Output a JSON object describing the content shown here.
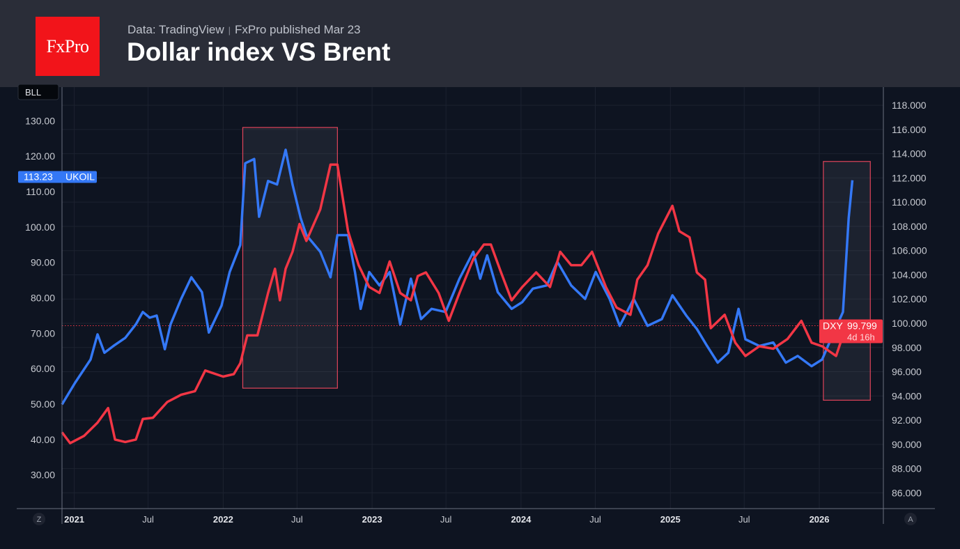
{
  "header": {
    "logo_text": "FxPro",
    "source": "Data: TradingView",
    "published": "FxPro published Mar 23",
    "title": "Dollar index VS Brent"
  },
  "colors": {
    "brent": "#3478f6",
    "dxy": "#f23645",
    "background": "#0e1421",
    "header_bg": "#2a2d38",
    "annotation": "#e0445a"
  },
  "icons": {
    "left_scale_button": "Z",
    "auto_scale_button": "A"
  },
  "chart_data": {
    "type": "line",
    "title": "Dollar index VS Brent",
    "xlim": [
      "2020-12-02",
      "2026-06-07"
    ],
    "x_ticks": [
      {
        "date": "2021-01-01",
        "label": "2021",
        "major": true
      },
      {
        "date": "2021-07-01",
        "label": "Jul",
        "major": false
      },
      {
        "date": "2022-01-01",
        "label": "2022",
        "major": true
      },
      {
        "date": "2022-07-01",
        "label": "Jul",
        "major": false
      },
      {
        "date": "2023-01-01",
        "label": "2023",
        "major": true
      },
      {
        "date": "2023-07-01",
        "label": "Jul",
        "major": false
      },
      {
        "date": "2024-01-01",
        "label": "2024",
        "major": true
      },
      {
        "date": "2024-07-01",
        "label": "Jul",
        "major": false
      },
      {
        "date": "2025-01-01",
        "label": "2025",
        "major": true
      },
      {
        "date": "2025-07-01",
        "label": "Jul",
        "major": false
      },
      {
        "date": "2026-01-01",
        "label": "2026",
        "major": true
      }
    ],
    "left_axis": {
      "label": "BLL",
      "ylim": [
        20.5,
        139.5
      ],
      "ticks": [
        "30.00",
        "40.00",
        "50.00",
        "60.00",
        "70.00",
        "80.00",
        "90.00",
        "100.00",
        "110.00",
        "120.00",
        "130.00"
      ]
    },
    "right_axis": {
      "ylim": [
        84.7,
        119.5
      ],
      "ticks": [
        "86.000",
        "88.000",
        "90.000",
        "92.000",
        "94.000",
        "96.000",
        "98.000",
        "100.000",
        "102.000",
        "104.000",
        "106.000",
        "108.000",
        "110.000",
        "112.000",
        "114.000",
        "116.000",
        "118.000"
      ]
    },
    "grid": true,
    "series": [
      {
        "name": "UKOIL",
        "axis": "left",
        "color": "#3478f6",
        "last_value": "113.23",
        "points": [
          [
            "2020-12-02",
            49.9
          ],
          [
            "2021-01-03",
            56.0
          ],
          [
            "2021-02-10",
            62.6
          ],
          [
            "2021-02-27",
            69.7
          ],
          [
            "2021-03-16",
            64.5
          ],
          [
            "2021-04-07",
            66.4
          ],
          [
            "2021-05-06",
            68.7
          ],
          [
            "2021-06-01",
            72.5
          ],
          [
            "2021-06-18",
            76.0
          ],
          [
            "2021-07-05",
            74.4
          ],
          [
            "2021-07-22",
            75.0
          ],
          [
            "2021-08-11",
            65.5
          ],
          [
            "2021-08-25",
            72.5
          ],
          [
            "2021-09-20",
            79.7
          ],
          [
            "2021-10-15",
            85.8
          ],
          [
            "2021-11-10",
            81.6
          ],
          [
            "2021-11-27",
            70.2
          ],
          [
            "2021-12-28",
            77.8
          ],
          [
            "2022-01-17",
            87.3
          ],
          [
            "2022-02-12",
            94.9
          ],
          [
            "2022-02-24",
            118.0
          ],
          [
            "2022-03-18",
            119.2
          ],
          [
            "2022-03-30",
            102.9
          ],
          [
            "2022-04-21",
            113.0
          ],
          [
            "2022-05-13",
            112.0
          ],
          [
            "2022-06-03",
            121.8
          ],
          [
            "2022-06-20",
            112.0
          ],
          [
            "2022-07-10",
            102.5
          ],
          [
            "2022-07-24",
            97.7
          ],
          [
            "2022-08-27",
            93.0
          ],
          [
            "2022-09-21",
            85.8
          ],
          [
            "2022-10-08",
            97.7
          ],
          [
            "2022-11-03",
            97.7
          ],
          [
            "2022-11-20",
            87.3
          ],
          [
            "2022-12-04",
            76.9
          ],
          [
            "2022-12-25",
            87.3
          ],
          [
            "2023-01-19",
            83.5
          ],
          [
            "2023-02-13",
            87.3
          ],
          [
            "2023-03-11",
            72.5
          ],
          [
            "2023-04-06",
            85.4
          ],
          [
            "2023-05-01",
            74.0
          ],
          [
            "2023-05-27",
            76.9
          ],
          [
            "2023-06-30",
            76.0
          ],
          [
            "2023-08-03",
            85.4
          ],
          [
            "2023-09-06",
            93.0
          ],
          [
            "2023-09-23",
            85.4
          ],
          [
            "2023-10-10",
            92.0
          ],
          [
            "2023-11-05",
            81.6
          ],
          [
            "2023-12-09",
            76.9
          ],
          [
            "2024-01-04",
            78.8
          ],
          [
            "2024-01-30",
            82.6
          ],
          [
            "2024-03-04",
            83.5
          ],
          [
            "2024-03-30",
            90.2
          ],
          [
            "2024-05-03",
            83.5
          ],
          [
            "2024-06-06",
            79.7
          ],
          [
            "2024-07-02",
            87.3
          ],
          [
            "2024-08-05",
            79.7
          ],
          [
            "2024-08-30",
            72.1
          ],
          [
            "2024-10-03",
            79.7
          ],
          [
            "2024-11-06",
            72.1
          ],
          [
            "2024-12-11",
            74.0
          ],
          [
            "2025-01-06",
            80.7
          ],
          [
            "2025-02-09",
            75.0
          ],
          [
            "2025-03-07",
            71.2
          ],
          [
            "2025-04-01",
            66.4
          ],
          [
            "2025-04-27",
            61.7
          ],
          [
            "2025-05-23",
            64.5
          ],
          [
            "2025-06-17",
            76.9
          ],
          [
            "2025-07-04",
            68.3
          ],
          [
            "2025-08-07",
            66.4
          ],
          [
            "2025-09-10",
            67.4
          ],
          [
            "2025-10-11",
            61.7
          ],
          [
            "2025-11-09",
            63.6
          ],
          [
            "2025-12-13",
            60.7
          ],
          [
            "2026-01-08",
            62.6
          ],
          [
            "2026-02-02",
            69.3
          ],
          [
            "2026-02-28",
            76.0
          ],
          [
            "2026-03-14",
            102.5
          ],
          [
            "2026-03-23",
            113.2
          ]
        ]
      },
      {
        "name": "DXY",
        "axis": "right",
        "color": "#f23645",
        "last_value": "99.799",
        "countdown": "4d 16h",
        "points": [
          [
            "2020-12-02",
            91.0
          ],
          [
            "2020-12-22",
            90.1
          ],
          [
            "2021-01-25",
            90.7
          ],
          [
            "2021-02-27",
            91.8
          ],
          [
            "2021-03-25",
            93.0
          ],
          [
            "2021-04-11",
            90.4
          ],
          [
            "2021-05-06",
            90.2
          ],
          [
            "2021-06-01",
            90.4
          ],
          [
            "2021-06-18",
            92.1
          ],
          [
            "2021-07-13",
            92.2
          ],
          [
            "2021-08-17",
            93.5
          ],
          [
            "2021-09-20",
            94.1
          ],
          [
            "2021-10-24",
            94.4
          ],
          [
            "2021-11-18",
            96.1
          ],
          [
            "2022-01-01",
            95.6
          ],
          [
            "2022-01-27",
            95.8
          ],
          [
            "2022-02-12",
            96.7
          ],
          [
            "2022-03-01",
            99.0
          ],
          [
            "2022-03-26",
            99.0
          ],
          [
            "2022-04-21",
            102.5
          ],
          [
            "2022-05-08",
            104.5
          ],
          [
            "2022-05-20",
            101.9
          ],
          [
            "2022-06-03",
            104.5
          ],
          [
            "2022-06-20",
            105.9
          ],
          [
            "2022-07-07",
            108.2
          ],
          [
            "2022-07-24",
            106.8
          ],
          [
            "2022-08-27",
            109.4
          ],
          [
            "2022-09-21",
            113.1
          ],
          [
            "2022-10-08",
            113.1
          ],
          [
            "2022-11-03",
            107.6
          ],
          [
            "2022-11-29",
            104.8
          ],
          [
            "2022-12-25",
            103.0
          ],
          [
            "2023-01-19",
            102.5
          ],
          [
            "2023-02-13",
            105.1
          ],
          [
            "2023-03-11",
            102.5
          ],
          [
            "2023-04-06",
            101.9
          ],
          [
            "2023-04-23",
            103.9
          ],
          [
            "2023-05-13",
            104.2
          ],
          [
            "2023-06-13",
            102.5
          ],
          [
            "2023-07-08",
            100.2
          ],
          [
            "2023-08-03",
            102.5
          ],
          [
            "2023-09-06",
            105.3
          ],
          [
            "2023-10-02",
            106.5
          ],
          [
            "2023-10-19",
            106.5
          ],
          [
            "2023-11-13",
            104.2
          ],
          [
            "2023-12-09",
            101.9
          ],
          [
            "2024-01-04",
            103.0
          ],
          [
            "2024-02-07",
            104.2
          ],
          [
            "2024-03-12",
            103.0
          ],
          [
            "2024-04-06",
            105.9
          ],
          [
            "2024-05-03",
            104.8
          ],
          [
            "2024-05-28",
            104.8
          ],
          [
            "2024-06-23",
            105.9
          ],
          [
            "2024-07-27",
            103.0
          ],
          [
            "2024-08-22",
            101.3
          ],
          [
            "2024-09-25",
            100.7
          ],
          [
            "2024-10-12",
            103.6
          ],
          [
            "2024-11-06",
            104.8
          ],
          [
            "2024-12-02",
            107.4
          ],
          [
            "2025-01-06",
            109.7
          ],
          [
            "2025-01-23",
            107.6
          ],
          [
            "2025-02-17",
            107.1
          ],
          [
            "2025-03-07",
            104.2
          ],
          [
            "2025-03-27",
            103.6
          ],
          [
            "2025-04-10",
            99.6
          ],
          [
            "2025-05-14",
            100.7
          ],
          [
            "2025-06-09",
            98.4
          ],
          [
            "2025-07-04",
            97.3
          ],
          [
            "2025-08-07",
            98.1
          ],
          [
            "2025-09-10",
            97.9
          ],
          [
            "2025-10-15",
            98.7
          ],
          [
            "2025-11-18",
            100.2
          ],
          [
            "2025-12-13",
            98.4
          ],
          [
            "2026-01-08",
            98.1
          ],
          [
            "2026-02-11",
            97.3
          ],
          [
            "2026-03-03",
            99.3
          ],
          [
            "2026-03-23",
            99.8
          ]
        ]
      }
    ],
    "annotations": [
      {
        "type": "rectangle",
        "axis": "left",
        "from": "2022-02-18",
        "to": "2022-10-08",
        "y_range": [
          54.5,
          128.1
        ]
      },
      {
        "type": "rectangle",
        "axis": "left",
        "from": "2026-01-11",
        "to": "2026-05-06",
        "y_range": [
          51.1,
          118.5
        ]
      }
    ],
    "price_line": {
      "axis": "right",
      "value": 99.799
    }
  }
}
